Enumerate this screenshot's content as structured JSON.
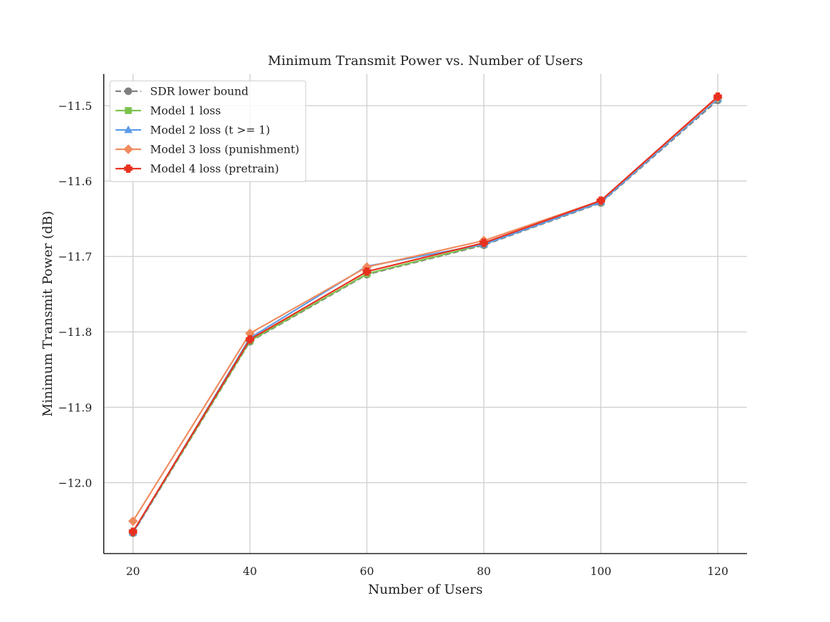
{
  "chart_data": {
    "type": "line",
    "title": "Minimum Transmit Power vs. Number of Users",
    "xlabel": "Number of Users",
    "ylabel": "Minimum Transmit Power (dB)",
    "x": [
      20,
      40,
      60,
      80,
      100,
      120
    ],
    "xticks": [
      "20",
      "40",
      "60",
      "80",
      "100",
      "120"
    ],
    "yticks": [
      "−11.5",
      "−11.6",
      "−11.7",
      "−11.8",
      "−11.9",
      "−12.0"
    ],
    "ytick_values": [
      -11.5,
      -11.6,
      -11.7,
      -11.8,
      -11.9,
      -12.0
    ],
    "xlim": [
      15,
      125
    ],
    "ylim": [
      -12.094,
      -11.458
    ],
    "grid": true,
    "legend_position": "upper-left",
    "series": [
      {
        "name": "SDR lower bound",
        "values": [
          -12.067,
          -11.813,
          -11.724,
          -11.685,
          -11.629,
          -11.493
        ],
        "color": "#7f7f7f",
        "marker": "circle",
        "dash": true
      },
      {
        "name": "Model 1 loss",
        "values": [
          -12.066,
          -11.812,
          -11.723,
          -11.684,
          -11.628,
          -11.491
        ],
        "color": "#7cc34e",
        "marker": "square",
        "dash": false
      },
      {
        "name": "Model 2 loss (t >= 1)",
        "values": [
          -12.066,
          -11.808,
          -11.713,
          -11.684,
          -11.628,
          -11.491
        ],
        "color": "#5b9be8",
        "marker": "triangle",
        "dash": false
      },
      {
        "name": "Model 3 loss (punishment)",
        "values": [
          -12.051,
          -11.802,
          -11.714,
          -11.679,
          -11.626,
          -11.489
        ],
        "color": "#f08a5d",
        "marker": "diamond",
        "dash": false
      },
      {
        "name": "Model 4 loss (pretrain)",
        "values": [
          -12.065,
          -11.81,
          -11.72,
          -11.682,
          -11.626,
          -11.488
        ],
        "color": "#e8301f",
        "marker": "plus",
        "dash": false
      }
    ]
  }
}
